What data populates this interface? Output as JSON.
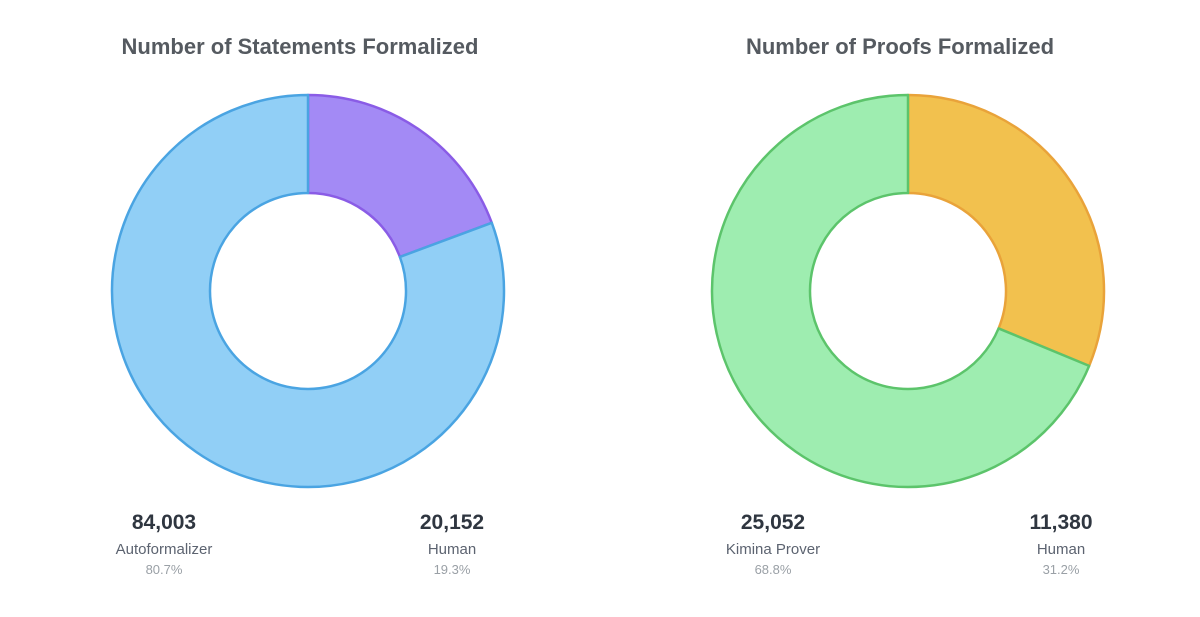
{
  "chart_data": [
    {
      "type": "pie",
      "title": "Number of Statements Formalized",
      "series": [
        {
          "name": "Autoformalizer",
          "value": 84003,
          "value_label": "84,003",
          "percent_label": "80.7%",
          "fill": "#91cff6",
          "stroke": "#4aa4e2"
        },
        {
          "name": "Human",
          "value": 20152,
          "value_label": "20,152",
          "percent_label": "19.3%",
          "fill": "#a38af5",
          "stroke": "#8a5ce6"
        }
      ]
    },
    {
      "type": "pie",
      "title": "Number of Proofs Formalized",
      "series": [
        {
          "name": "Kimina Prover",
          "value": 25052,
          "value_label": "25,052",
          "percent_label": "68.8%",
          "fill": "#9eedb0",
          "stroke": "#5cc46b"
        },
        {
          "name": "Human",
          "value": 11380,
          "value_label": "11,380",
          "percent_label": "31.2%",
          "fill": "#f2c14e",
          "stroke": "#e9a33a"
        }
      ]
    }
  ]
}
